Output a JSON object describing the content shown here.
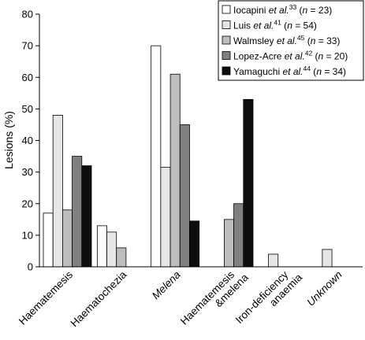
{
  "chart_data": {
    "type": "bar",
    "ylabel": "Lesions (%)",
    "ylim": [
      0,
      80
    ],
    "yticks": [
      0,
      10,
      20,
      30,
      40,
      50,
      60,
      70,
      80
    ],
    "grid": false,
    "legend_position": "top-right",
    "categories": [
      {
        "lines": [
          "Haematemesis"
        ],
        "italic": false
      },
      {
        "lines": [
          "Haematochezia"
        ],
        "italic": false
      },
      {
        "lines": [
          "Melena"
        ],
        "italic": true
      },
      {
        "lines": [
          "Haematemesis",
          "&melena"
        ],
        "italic": false
      },
      {
        "lines": [
          "Iron-deficiency",
          "anaemia"
        ],
        "italic": false
      },
      {
        "lines": [
          "Unknown"
        ],
        "italic": true
      }
    ],
    "series": [
      {
        "name": "Iocapini et al.33 (n = 23)",
        "author": "Iocapini",
        "ref": "33",
        "n": "23",
        "color": "#ffffff",
        "values": [
          17,
          13,
          70,
          null,
          null,
          null
        ]
      },
      {
        "name": "Luis et al.41 (n = 54)",
        "author": "Luis",
        "ref": "41",
        "n": "54",
        "color": "#e6e6e6",
        "values": [
          48,
          11,
          31.5,
          null,
          4,
          5.5
        ]
      },
      {
        "name": "Walmsley et al.45 (n = 33)",
        "author": "Walmsley",
        "ref": "45",
        "n": "33",
        "color": "#bdbdbd",
        "values": [
          18,
          6,
          61,
          15,
          null,
          null
        ]
      },
      {
        "name": "Lopez-Acre et al.42 (n = 20)",
        "author": "Lopez-Acre",
        "ref": "42",
        "n": "20",
        "color": "#808080",
        "values": [
          35,
          null,
          45,
          20,
          null,
          null
        ]
      },
      {
        "name": "Yamaguchi et al.44 (n = 34)",
        "author": "Yamaguchi",
        "ref": "44",
        "n": "34",
        "color": "#0d0d0d",
        "values": [
          32,
          null,
          14.5,
          53,
          null,
          null
        ]
      }
    ]
  }
}
